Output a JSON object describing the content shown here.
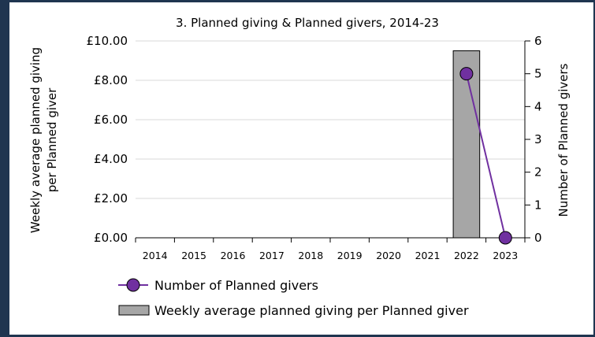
{
  "chart_data": {
    "type": "bar+line",
    "title": "3. Planned giving & Planned givers, 2014-23",
    "categories": [
      "2014",
      "2015",
      "2016",
      "2017",
      "2018",
      "2019",
      "2020",
      "2021",
      "2022",
      "2023"
    ],
    "y_left": {
      "label": "Weekly average planned giving per Planned giver",
      "label_lines": [
        "Weekly average planned giving",
        "per Planned giver"
      ],
      "range": [
        0,
        10
      ],
      "ticks": [
        "£0.00",
        "£2.00",
        "£4.00",
        "£6.00",
        "£8.00",
        "£10.00"
      ]
    },
    "y_right": {
      "label": "Number of Planned givers",
      "range": [
        0,
        6
      ],
      "ticks": [
        "0",
        "1",
        "2",
        "3",
        "4",
        "5",
        "6"
      ]
    },
    "series": [
      {
        "name": "Weekly average planned giving per Planned giver",
        "type": "bar",
        "axis": "left",
        "color": "#a6a6a6",
        "values": [
          null,
          null,
          null,
          null,
          null,
          null,
          null,
          null,
          9.5,
          null
        ]
      },
      {
        "name": "Number of Planned givers",
        "type": "line",
        "axis": "right",
        "color": "#7030a0",
        "values": [
          null,
          null,
          null,
          null,
          null,
          null,
          null,
          null,
          5,
          0
        ]
      }
    ],
    "grid": true,
    "legend": "bottom-left"
  }
}
